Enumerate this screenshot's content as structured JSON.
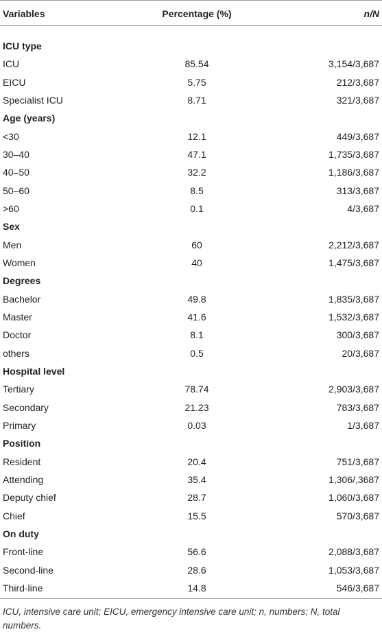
{
  "header": {
    "variables": "Variables",
    "percentage": "Percentage (%)",
    "n_N": "n/N"
  },
  "groups": [
    {
      "title": "ICU type",
      "rows": [
        [
          "ICU",
          "85.54",
          "3,154/3,687"
        ],
        [
          "EICU",
          "5.75",
          "212/3,687"
        ],
        [
          "Specialist ICU",
          "8.71",
          "321/3,687"
        ]
      ]
    },
    {
      "title": "Age (years)",
      "rows": [
        [
          "<30",
          "12.1",
          "449/3,687"
        ],
        [
          "30–40",
          "47.1",
          "1,735/3,687"
        ],
        [
          "40–50",
          "32.2",
          "1,186/3,687"
        ],
        [
          "50–60",
          "8.5",
          "313/3,687"
        ],
        [
          ">60",
          "0.1",
          "4/3,687"
        ]
      ]
    },
    {
      "title": "Sex",
      "rows": [
        [
          "Men",
          "60",
          "2,212/3,687"
        ],
        [
          "Women",
          "40",
          "1,475/3,687"
        ]
      ]
    },
    {
      "title": "Degrees",
      "rows": [
        [
          "Bachelor",
          "49.8",
          "1,835/3,687"
        ],
        [
          "Master",
          "41.6",
          "1,532/3,687"
        ],
        [
          "Doctor",
          "8.1",
          "300/3,687"
        ],
        [
          "others",
          "0.5",
          "20/3,687"
        ]
      ]
    },
    {
      "title": "Hospital level",
      "rows": [
        [
          "Tertiary",
          "78.74",
          "2,903/3,687"
        ],
        [
          "Secondary",
          "21.23",
          "783/3,687"
        ],
        [
          "Primary",
          "0.03",
          "1/3,687"
        ]
      ]
    },
    {
      "title": "Position",
      "rows": [
        [
          "Resident",
          "20.4",
          "751/3,687"
        ],
        [
          "Attending",
          "35.4",
          "1,306/,3687"
        ],
        [
          "Deputy chief",
          "28.7",
          "1,060/3,687"
        ],
        [
          "Chief",
          "15.5",
          "570/3,687"
        ]
      ]
    },
    {
      "title": "On duty",
      "rows": [
        [
          "Front-line",
          "56.6",
          "2,088/3,687"
        ],
        [
          "Second-line",
          "28.6",
          "1,053/3,687"
        ],
        [
          "Third-line",
          "14.8",
          "546/3,687"
        ]
      ]
    }
  ],
  "footnote": "ICU, intensive care unit; EICU, emergency intensive care unit; n, numbers; N, total numbers."
}
